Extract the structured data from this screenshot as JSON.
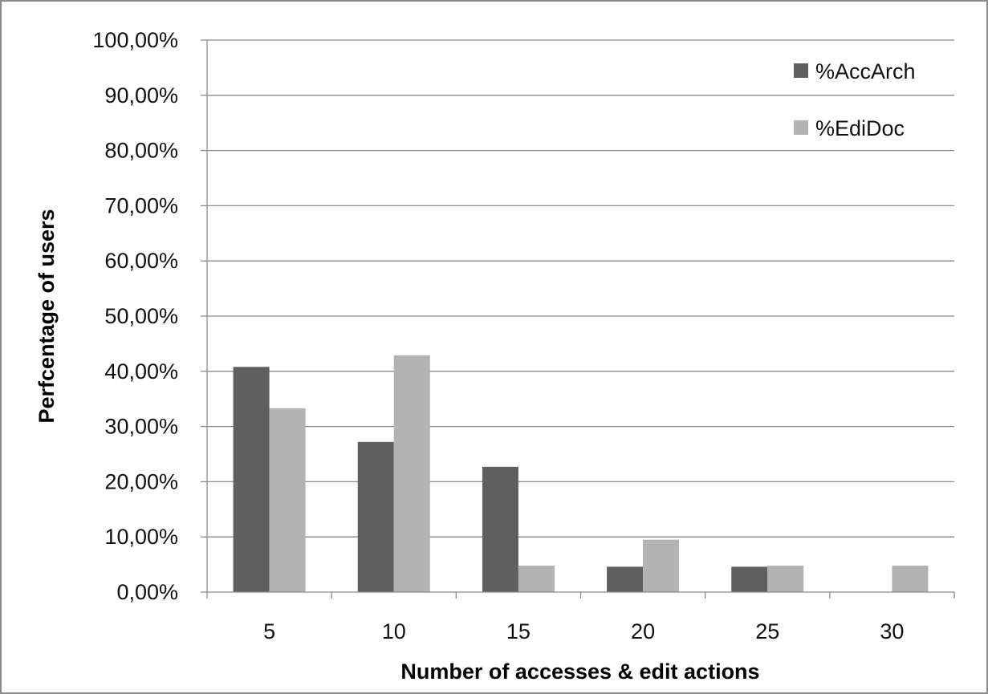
{
  "chart_data": {
    "type": "bar",
    "title": "",
    "xlabel": "Number of accesses & edit actions",
    "ylabel": "Perfcentage of users",
    "categories": [
      "5",
      "10",
      "15",
      "20",
      "25",
      "30"
    ],
    "series": [
      {
        "name": "%AccArch",
        "color": "#5f5f5f",
        "values": [
          40.8,
          27.2,
          22.7,
          4.6,
          4.6,
          0
        ]
      },
      {
        "name": "%EdiDoc",
        "color": "#b3b3b3",
        "values": [
          33.3,
          42.9,
          4.8,
          9.5,
          4.8,
          4.8
        ]
      }
    ],
    "ylim": [
      0,
      100
    ],
    "y_ticks": [
      "0,00%",
      "10,00%",
      "20,00%",
      "30,00%",
      "40,00%",
      "50,00%",
      "60,00%",
      "70,00%",
      "80,00%",
      "90,00%",
      "100,00%"
    ],
    "grid": true,
    "legend_position": "top-right"
  }
}
